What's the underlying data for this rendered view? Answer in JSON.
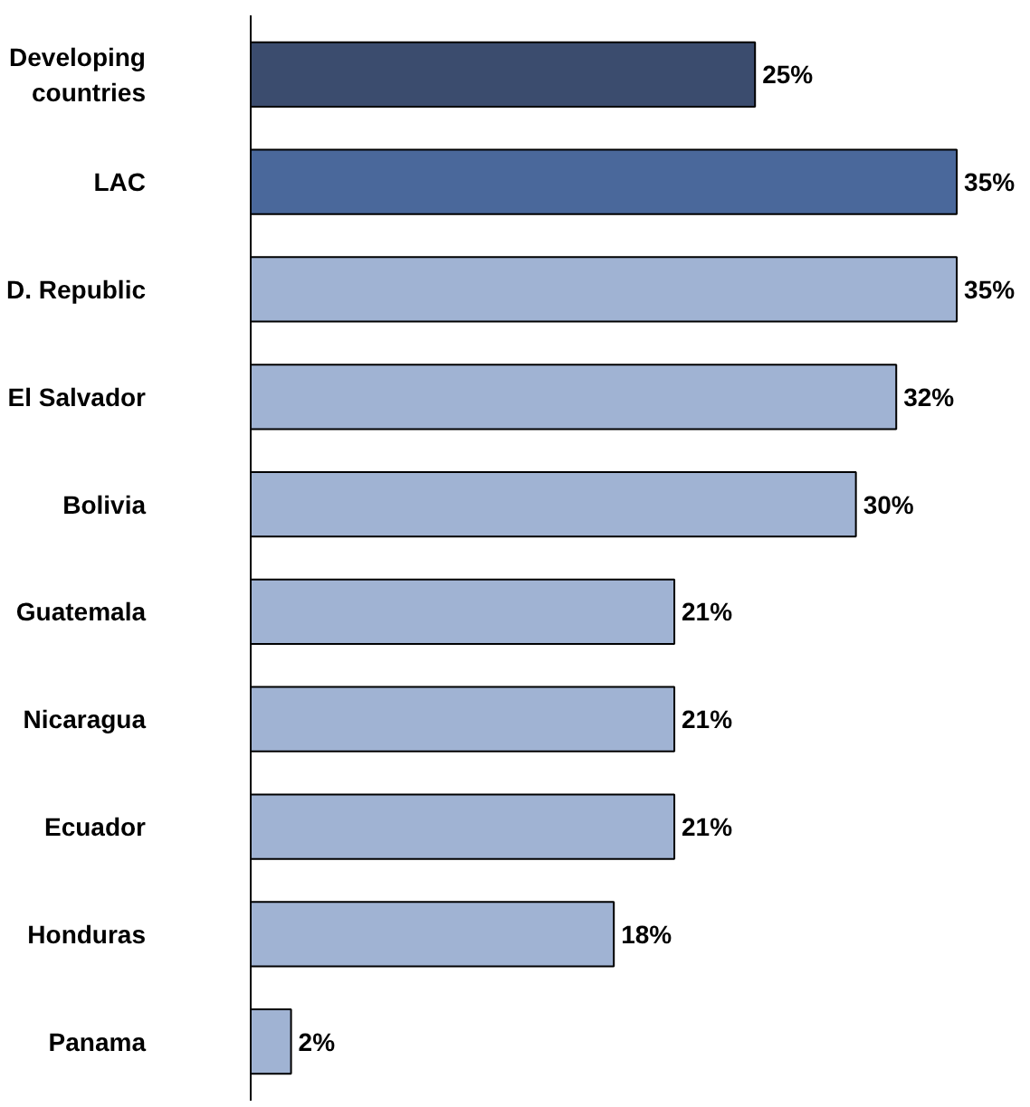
{
  "chart_data": {
    "type": "bar",
    "orientation": "horizontal",
    "categories": [
      "Developing countries",
      "LAC",
      "D. Republic",
      "El Salvador",
      "Bolivia",
      "Guatemala",
      "Nicaragua",
      "Ecuador",
      "Honduras",
      "Panama"
    ],
    "values": [
      25,
      35,
      35,
      32,
      30,
      21,
      21,
      21,
      18,
      2
    ],
    "colors": [
      "#3b4c6e",
      "#4a689b",
      "#a0b3d3",
      "#a0b3d3",
      "#a0b3d3",
      "#a0b3d3",
      "#a0b3d3",
      "#a0b3d3",
      "#a0b3d3",
      "#a0b3d3"
    ],
    "value_labels": [
      "25%",
      "35%",
      "35%",
      "32%",
      "30%",
      "21%",
      "21%",
      "21%",
      "18%",
      "2%"
    ]
  }
}
